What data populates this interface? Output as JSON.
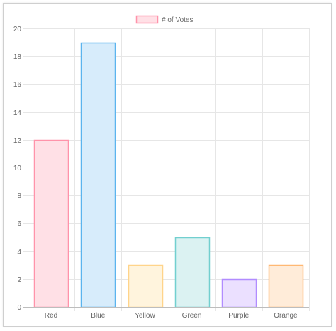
{
  "chart_data": {
    "type": "bar",
    "categories": [
      "Red",
      "Blue",
      "Yellow",
      "Green",
      "Purple",
      "Orange"
    ],
    "series": [
      {
        "name": "# of Votes",
        "values": [
          12,
          19,
          3,
          5,
          2,
          3
        ]
      }
    ],
    "ylim": [
      0,
      20
    ],
    "yticks": [
      0,
      2,
      4,
      6,
      8,
      10,
      12,
      14,
      16,
      18,
      20
    ],
    "grid": true,
    "legend": "top",
    "bar_fill_colors": [
      "#ffe0e6",
      "#d7ecfb",
      "#fff4dd",
      "#dbf2f2",
      "#ebe0ff",
      "#ffecd9"
    ],
    "bar_border_colors": [
      "#ff93aa",
      "#5bb4ee",
      "#ffd48a",
      "#72cfcf",
      "#b18cff",
      "#ffb873"
    ],
    "legend_swatch_fill": "#ffe0e6",
    "legend_swatch_border": "#ff93aa"
  }
}
